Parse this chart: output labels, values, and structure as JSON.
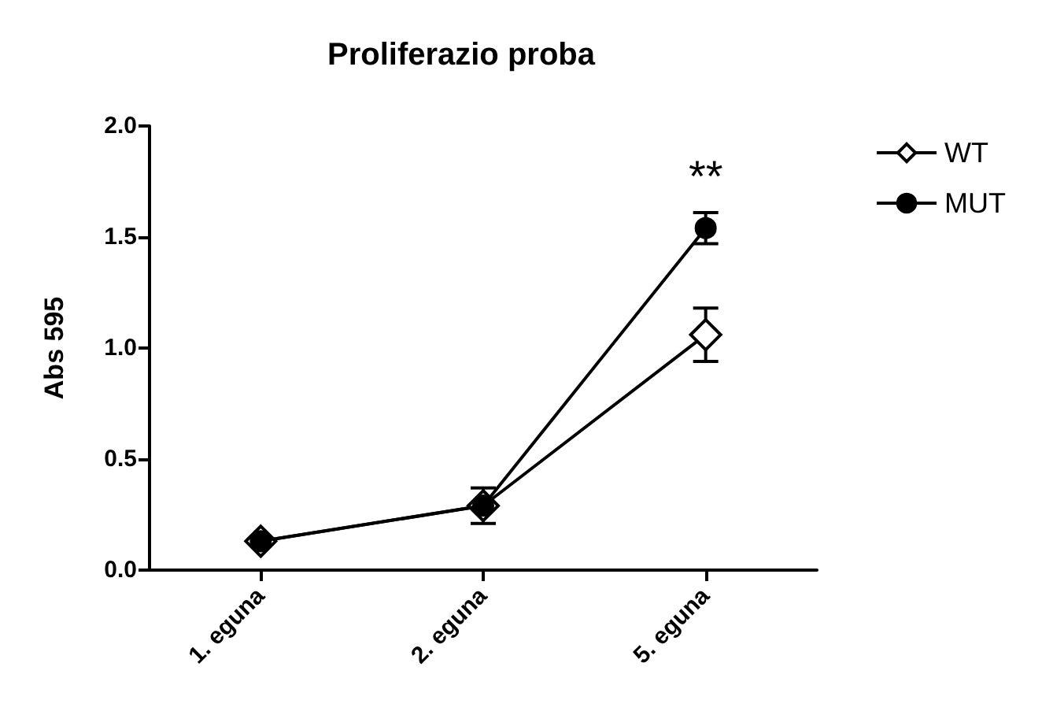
{
  "chart_data": {
    "type": "line",
    "title": "Proliferazio proba",
    "ylabel": "Abs 595",
    "categories": [
      "1. eguna",
      "2. eguna",
      "5. eguna"
    ],
    "series": [
      {
        "name": "WT",
        "color": "#000000",
        "marker": "diamond",
        "values": [
          0.13,
          0.29,
          1.06
        ],
        "errors": [
          null,
          0.08,
          0.12
        ]
      },
      {
        "name": "MUT",
        "color": "#000000",
        "marker": "circle",
        "values": [
          0.13,
          0.29,
          1.54
        ],
        "errors": [
          null,
          null,
          0.07
        ]
      }
    ],
    "ylim": [
      0,
      2
    ],
    "yticks": [
      {
        "value": 0,
        "label": "0.0"
      },
      0.5,
      {
        "value": 1,
        "label": "1.0"
      },
      1.5,
      {
        "value": 2,
        "label": "2.0"
      }
    ],
    "grid": false,
    "legend": "top right",
    "annotations": [
      "**"
    ]
  }
}
